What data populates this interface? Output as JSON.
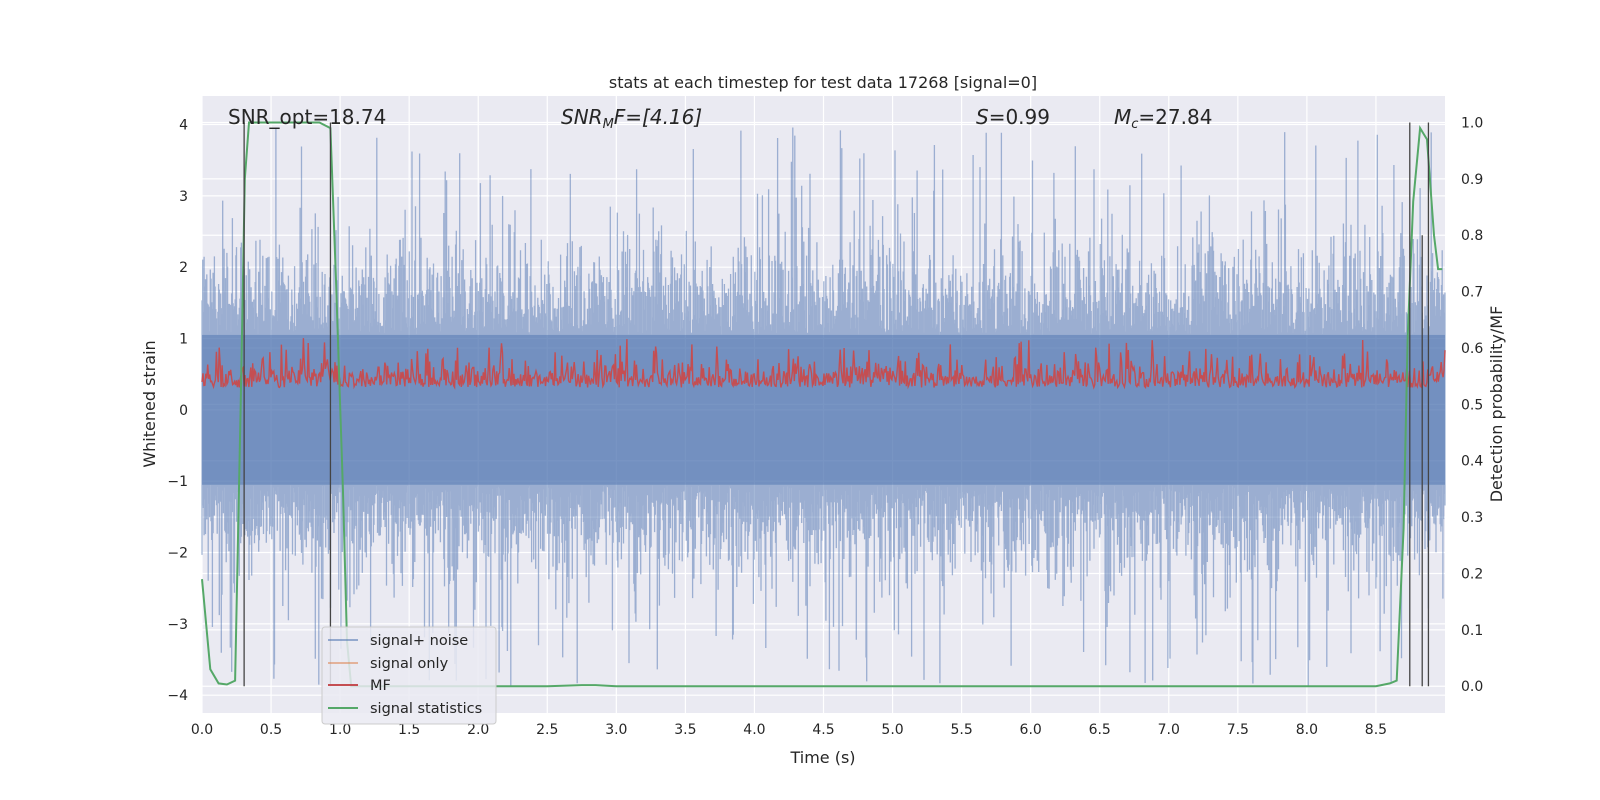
{
  "chart_data": {
    "type": "line",
    "title": "stats at each timestep for test data 17268 [signal=0]",
    "xlabel": "Time (s)",
    "ylabel": "Whitened strain",
    "y2label": "Detection probability/MF",
    "xlim": [
      0.0,
      9.0
    ],
    "ylim": [
      -4.25,
      4.4
    ],
    "y2lim": [
      -0.0475,
      1.047
    ],
    "x_ticks": [
      "0.0",
      "0.5",
      "1.0",
      "1.5",
      "2.0",
      "2.5",
      "3.0",
      "3.5",
      "4.0",
      "4.5",
      "5.0",
      "5.5",
      "6.0",
      "6.5",
      "7.0",
      "7.5",
      "8.0",
      "8.5"
    ],
    "y_ticks": [
      "4",
      "3",
      "2",
      "1",
      "0",
      "−1",
      "−2",
      "−3",
      "−4"
    ],
    "y2_ticks": [
      "1.0",
      "0.9",
      "0.8",
      "0.7",
      "0.6",
      "0.5",
      "0.4",
      "0.3",
      "0.2",
      "0.1",
      "0.0"
    ],
    "grid": true,
    "legend_position": "lower-left",
    "annotations": {
      "snr_opt": "SNR_opt=18.74",
      "snr_mf_base": "SNR",
      "snr_mf_sub": "M",
      "snr_mf_rest": "F=[4.16]",
      "s_sym": "S",
      "s_val": "=0.99",
      "mc_sym": "M",
      "mc_sub": "c",
      "mc_val": "=27.84"
    },
    "series": [
      {
        "name": "signal+ noise",
        "color": "#4c72b0",
        "axis": "left",
        "approx_range": [
          -3.9,
          4.0
        ]
      },
      {
        "name": "signal only",
        "color": "#dd8452",
        "axis": "left",
        "values": []
      },
      {
        "name": "MF",
        "color": "#c44e52",
        "axis": "right",
        "approx_range": [
          0.5,
          0.62
        ]
      },
      {
        "name": "signal statistics",
        "color": "#55a868",
        "axis": "right",
        "x": [
          0.0,
          0.06,
          0.12,
          0.18,
          0.24,
          0.28,
          0.31,
          0.34,
          0.37,
          0.42,
          0.55,
          0.7,
          0.85,
          0.93,
          0.97,
          1.02,
          1.05,
          1.08,
          1.15,
          1.3,
          2.0,
          2.5,
          2.75,
          2.85,
          3.0,
          4.0,
          5.0,
          6.0,
          7.0,
          8.0,
          8.5,
          8.6,
          8.65,
          8.7,
          8.73,
          8.77,
          8.82,
          8.87,
          8.92,
          8.95,
          8.98
        ],
        "y": [
          0.19,
          0.03,
          0.005,
          0.003,
          0.01,
          0.5,
          0.9,
          1.0,
          1.0,
          1.0,
          1.0,
          1.0,
          1.0,
          0.99,
          0.72,
          0.35,
          0.08,
          0.0,
          0.0,
          0.0,
          0.0,
          0.0,
          0.002,
          0.002,
          0.0,
          0.0,
          0.0,
          0.0,
          0.0,
          0.0,
          0.0,
          0.005,
          0.01,
          0.28,
          0.62,
          0.86,
          0.99,
          0.97,
          0.8,
          0.74,
          0.74
        ]
      }
    ],
    "vertical_markers": [
      {
        "x": 0.305,
        "y_top": 1.0
      },
      {
        "x": 0.93,
        "y_top": 1.0
      },
      {
        "x": 8.745,
        "y_top": 1.0
      },
      {
        "x": 8.835,
        "y_top": 0.8
      },
      {
        "x": 8.88,
        "y_top": 1.0
      }
    ]
  }
}
